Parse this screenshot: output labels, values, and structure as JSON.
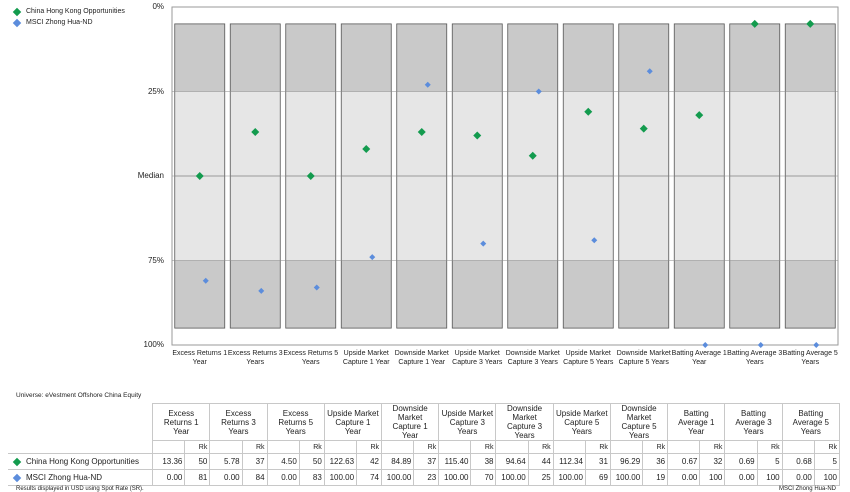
{
  "legend": [
    {
      "name": "China Hong Kong Opportunities",
      "color": "#139b4e"
    },
    {
      "name": "MSCI Zhong Hua-ND",
      "color": "#5c8ddc"
    }
  ],
  "chart_data": {
    "type": "scatter",
    "title": "",
    "y_axis_ticks": [
      "0%",
      "25%",
      "Median",
      "75%",
      "100%"
    ],
    "ylim": [
      0,
      100
    ],
    "y_reversed": true,
    "categories": [
      "Excess Returns 1 Year",
      "Excess Returns 3 Years",
      "Excess Returns 5 Years",
      "Upside Market Capture 1 Year",
      "Downside Market Capture 1 Year",
      "Upside Market Capture 3 Years",
      "Downside Market Capture 3 Years",
      "Upside Market Capture 5 Years",
      "Downside Market Capture 5 Years",
      "Batting Average 1 Year",
      "Batting Average 3 Years",
      "Batting Average 5 Years"
    ],
    "boxes": {
      "top_percentile": 5,
      "p25": 25,
      "median": 50,
      "p75": 75,
      "bottom_percentile": 95
    },
    "series": [
      {
        "name": "China Hong Kong Opportunities",
        "color": "#139b4e",
        "marker": "diamond",
        "values": [
          50,
          37,
          50,
          42,
          37,
          38,
          44,
          31,
          36,
          32,
          5,
          5
        ]
      },
      {
        "name": "MSCI Zhong Hua-ND",
        "color": "#5c8ddc",
        "marker": "diamond",
        "values": [
          81,
          84,
          83,
          74,
          23,
          70,
          25,
          69,
          19,
          100,
          100,
          100
        ]
      }
    ]
  },
  "universe_label": "Universe: eVestment Offshore China Equity",
  "table": {
    "rank_header": "Rk",
    "headers": [
      "Excess Returns 1 Year",
      "Excess Returns 3 Years",
      "Excess Returns 5 Years",
      "Upside Market Capture 1 Year",
      "Downside Market Capture 1 Year",
      "Upside Market Capture 3 Years",
      "Downside Market Capture 3 Years",
      "Upside Market Capture 5 Years",
      "Downside Market Capture 5 Years",
      "Batting Average 1 Year",
      "Batting Average 3 Years",
      "Batting Average 5 Years"
    ],
    "rows": [
      {
        "name": "China Hong Kong Opportunities",
        "color": "#139b4e",
        "values": [
          "13.36",
          "5.78",
          "4.50",
          "122.63",
          "84.89",
          "115.40",
          "94.64",
          "112.34",
          "96.29",
          "0.67",
          "0.69",
          "0.68"
        ],
        "ranks": [
          "50",
          "37",
          "50",
          "42",
          "37",
          "38",
          "44",
          "31",
          "36",
          "32",
          "5",
          "5"
        ]
      },
      {
        "name": "MSCI Zhong Hua-ND",
        "color": "#5c8ddc",
        "values": [
          "0.00",
          "0.00",
          "0.00",
          "100.00",
          "100.00",
          "100.00",
          "100.00",
          "100.00",
          "100.00",
          "0.00",
          "0.00",
          "0.00"
        ],
        "ranks": [
          "81",
          "84",
          "83",
          "74",
          "23",
          "70",
          "25",
          "69",
          "19",
          "100",
          "100",
          "100"
        ]
      }
    ]
  },
  "footer_left": "Results displayed in USD using Spot Rate (SR).",
  "footer_right": "MSCI Zhong Hua-ND"
}
